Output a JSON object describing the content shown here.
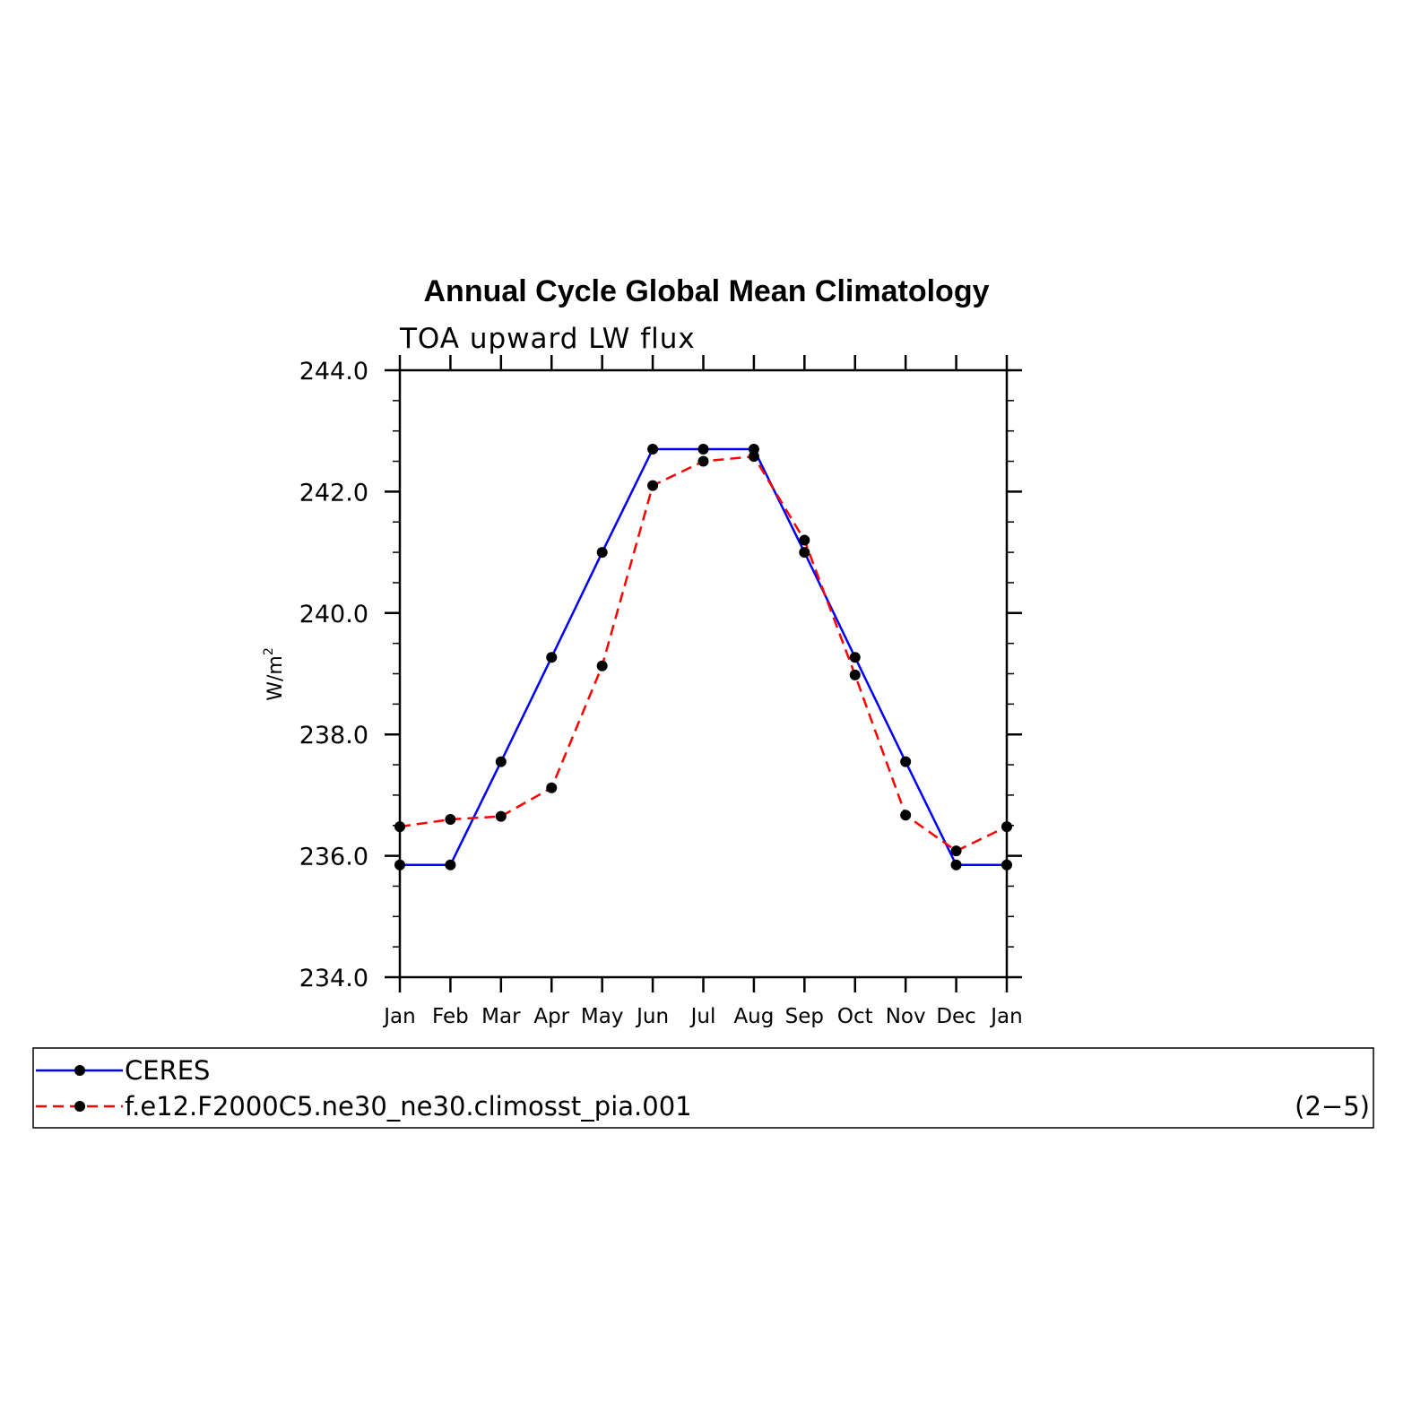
{
  "chart_data": {
    "type": "line",
    "title": "Annual Cycle Global Mean Climatology",
    "subtitle": "TOA upward LW flux",
    "ylabel": "W/m",
    "ylabel_superscript": "2",
    "categories": [
      "Jan",
      "Feb",
      "Mar",
      "Apr",
      "May",
      "Jun",
      "Jul",
      "Aug",
      "Sep",
      "Oct",
      "Nov",
      "Dec",
      "Jan"
    ],
    "ylim": [
      234.0,
      244.0
    ],
    "yticks": [
      "234.0",
      "236.0",
      "238.0",
      "240.0",
      "242.0",
      "244.0"
    ],
    "yticks_values": [
      234,
      236,
      238,
      240,
      242,
      244
    ],
    "series": [
      {
        "name": "CERES",
        "color": "#0000ff",
        "dash": "solid",
        "values": [
          235.85,
          235.85,
          237.55,
          239.27,
          241.0,
          242.7,
          242.7,
          242.7,
          241.0,
          239.27,
          237.55,
          235.85,
          235.85
        ]
      },
      {
        "name": "f.e12.F2000C5.ne30_ne30.climosst_pia.001",
        "color": "#ff0000",
        "dash": "dashed",
        "values": [
          236.48,
          236.6,
          236.65,
          237.12,
          239.13,
          242.1,
          242.5,
          242.58,
          241.2,
          238.98,
          236.67,
          236.08,
          236.48
        ]
      }
    ],
    "legend_position": "bottom",
    "annotation": "(2−5)",
    "marker_color": "#000000"
  }
}
